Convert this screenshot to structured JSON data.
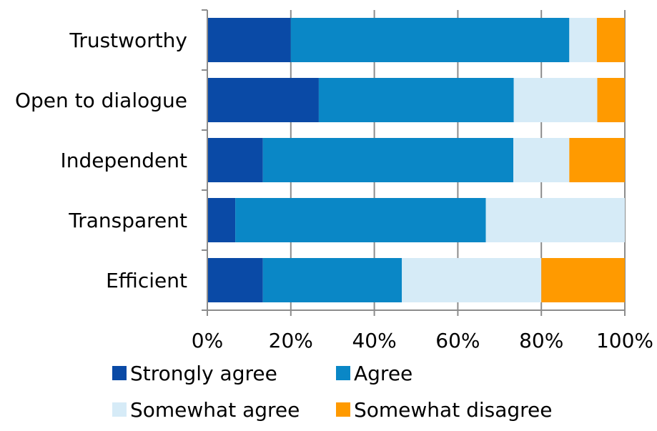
{
  "chart_data": {
    "type": "bar",
    "orientation": "horizontal",
    "stacked": "percent",
    "categories": [
      "Trustworthy",
      "Open to dialogue",
      "Independent",
      "Transparent",
      "Efficient"
    ],
    "series": [
      {
        "name": "Strongly agree",
        "color": "#0a4aa6",
        "values": [
          20,
          26.7,
          13.3,
          6.7,
          13.3
        ]
      },
      {
        "name": "Agree",
        "color": "#0a87c6",
        "values": [
          66.7,
          46.7,
          60,
          60,
          33.3
        ]
      },
      {
        "name": "Somewhat agree",
        "color": "#d6ebf7",
        "values": [
          6.6,
          20,
          13.4,
          33.3,
          33.4
        ]
      },
      {
        "name": "Somewhat disagree",
        "color": "#ff9a00",
        "values": [
          6.7,
          6.6,
          13.3,
          0,
          20
        ]
      }
    ],
    "xlim": [
      0,
      100
    ],
    "x_ticks": [
      "0%",
      "20%",
      "40%",
      "60%",
      "80%",
      "100%"
    ],
    "grid": "vertical",
    "legend_position": "bottom"
  }
}
